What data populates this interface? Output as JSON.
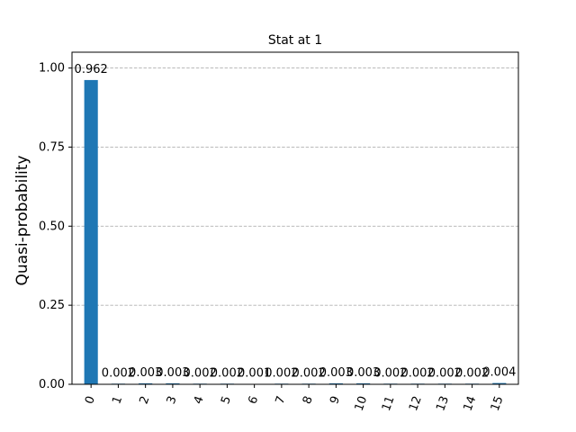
{
  "chart_data": {
    "type": "bar",
    "title": "Stat at 1",
    "xlabel": "",
    "ylabel": "Quasi-probability",
    "categories": [
      "0",
      "1",
      "2",
      "3",
      "4",
      "5",
      "6",
      "7",
      "8",
      "9",
      "10",
      "11",
      "12",
      "13",
      "14",
      "15"
    ],
    "values": [
      0.962,
      0.002,
      0.003,
      0.003,
      0.002,
      0.002,
      0.001,
      0.002,
      0.002,
      0.003,
      0.003,
      0.002,
      0.002,
      0.002,
      0.002,
      0.004
    ],
    "data_labels": [
      "0.962",
      "0.002",
      "0.003",
      "0.003",
      "0.002",
      "0.002",
      "0.001",
      "0.002",
      "0.002",
      "0.003",
      "0.003",
      "0.002",
      "0.002",
      "0.002",
      "0.002",
      "0.004"
    ],
    "ylim": [
      0,
      1.05
    ],
    "yticks": [
      0,
      0.25,
      0.5,
      0.75,
      1.0
    ],
    "ytick_labels": [
      "0.00",
      "0.25",
      "0.50",
      "0.75",
      "1.00"
    ],
    "grid": "y-dashed",
    "bar_color": "#1f77b4",
    "grid_color": "#b0b0b0"
  }
}
